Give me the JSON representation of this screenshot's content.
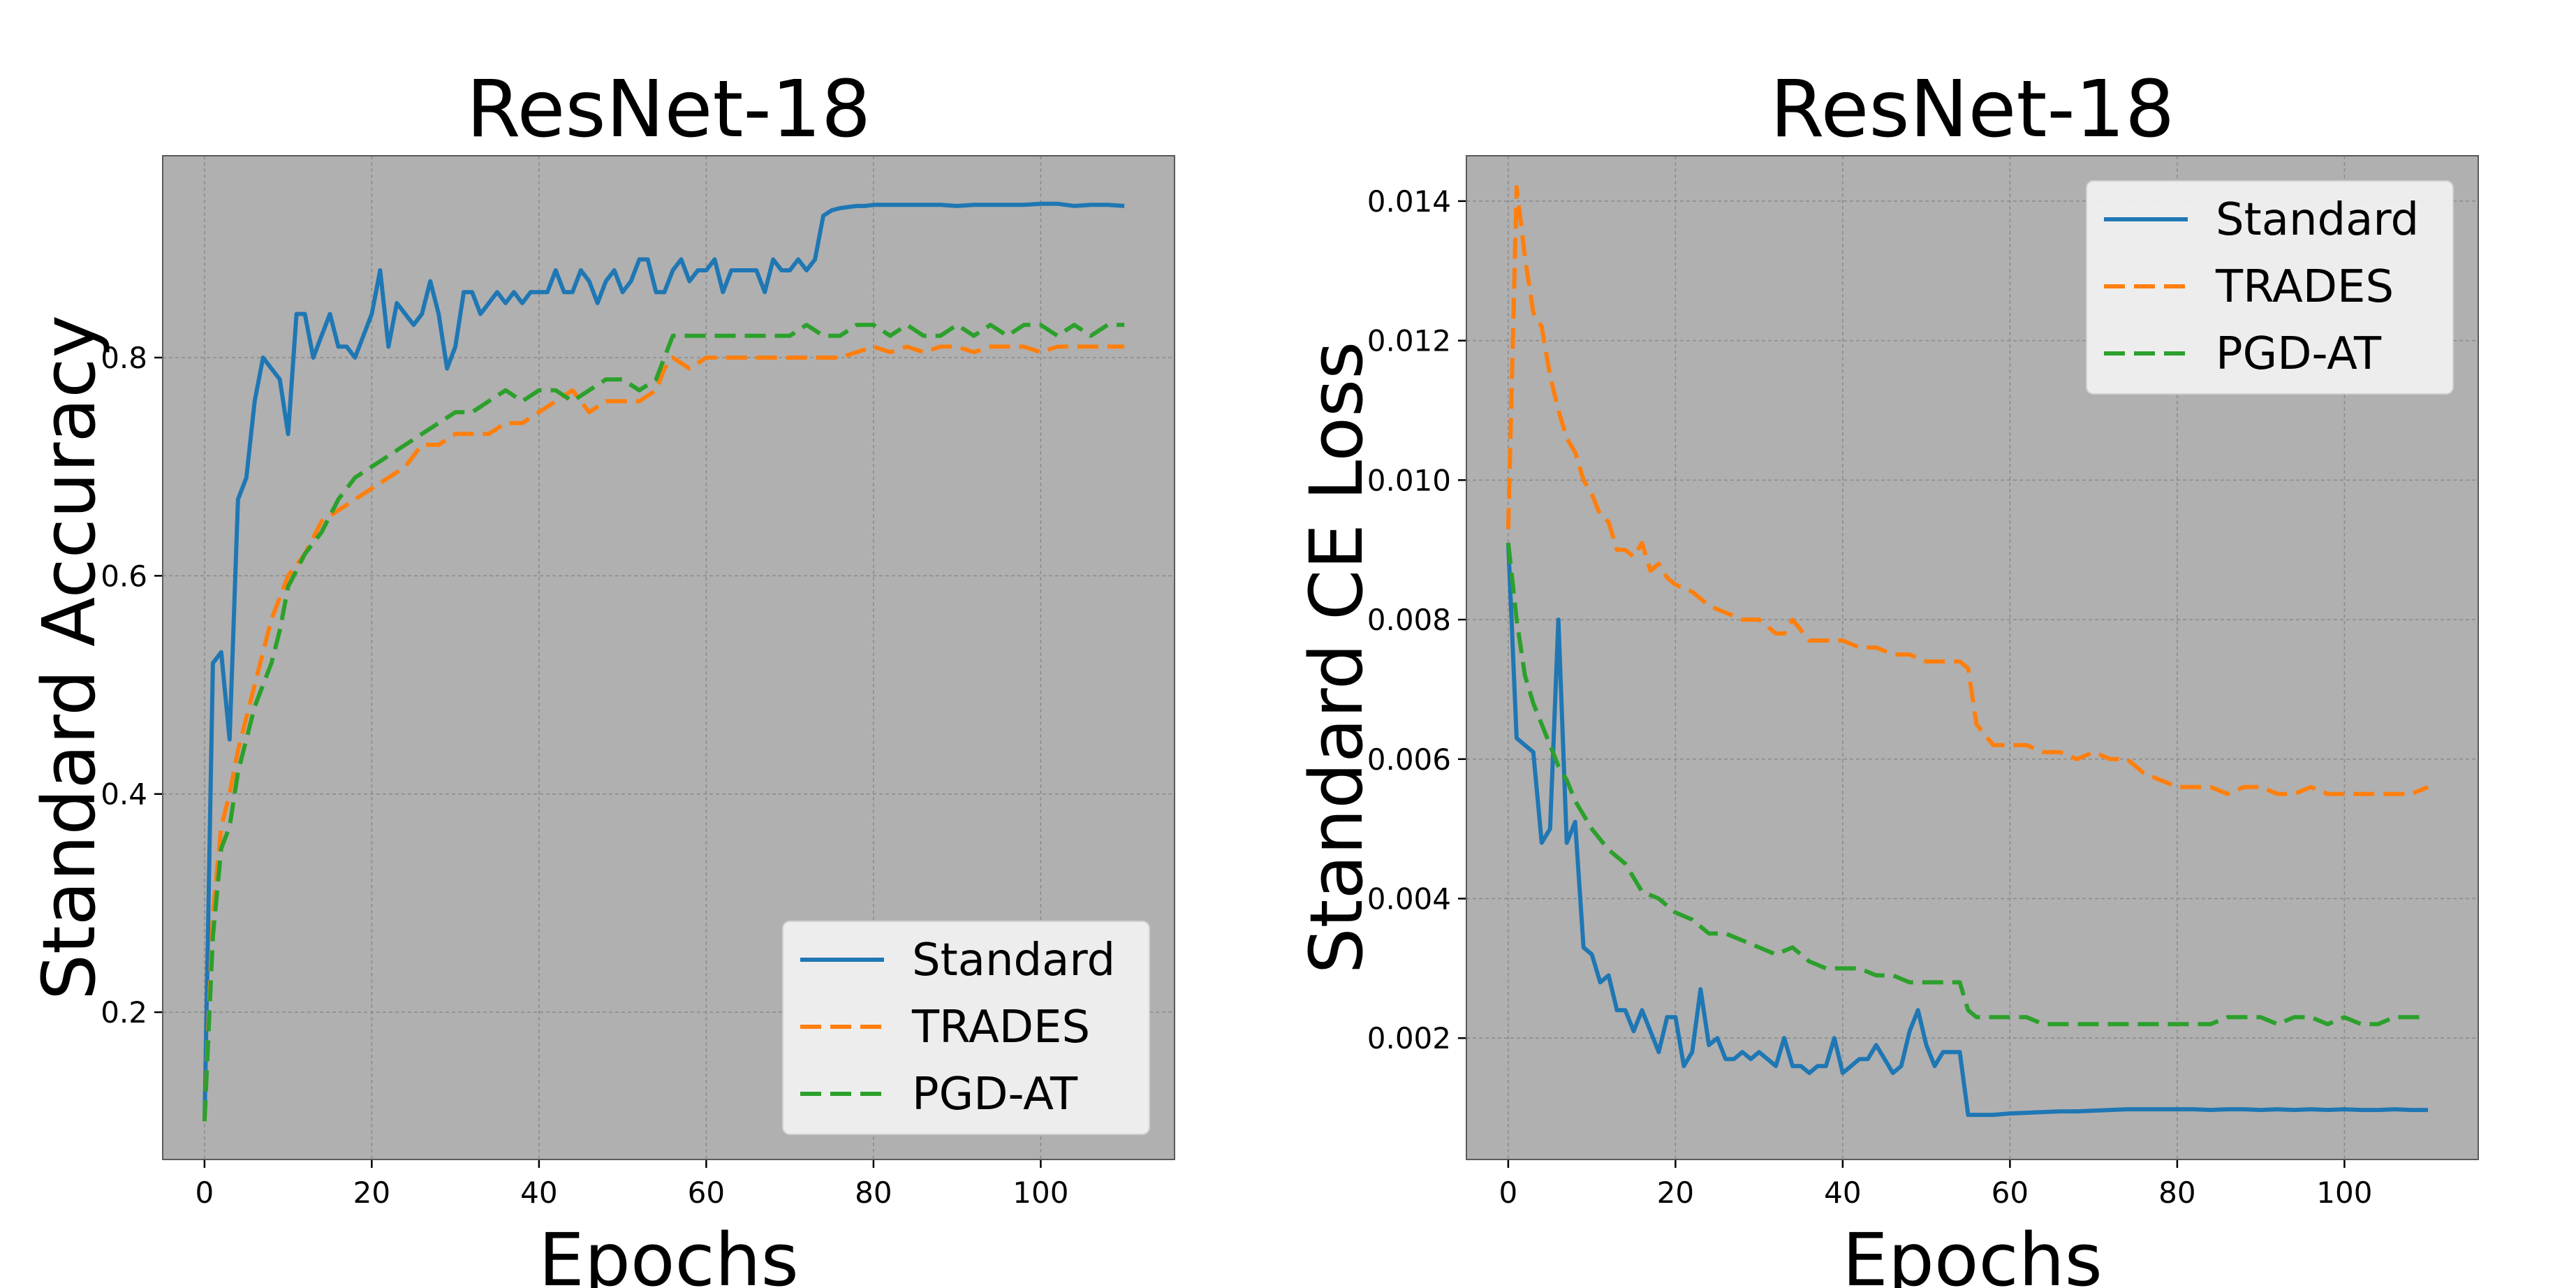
{
  "chart_data": [
    {
      "type": "line",
      "title": "ResNet-18",
      "xlabel": "Epochs",
      "ylabel": "Standard Accuracy",
      "xlim": [
        -5,
        116
      ],
      "ylim": [
        0.065,
        0.985
      ],
      "xticks": [
        0,
        20,
        40,
        60,
        80,
        100
      ],
      "yticks": [
        0.2,
        0.4,
        0.6,
        0.8
      ],
      "ytick_labels": [
        "0.2",
        "0.4",
        "0.6",
        "0.8"
      ],
      "grid": true,
      "legend_position": "lower-right",
      "series": [
        {
          "name": "Standard",
          "color": "#1f77b4",
          "style": "solid",
          "x": [
            0,
            1,
            2,
            3,
            4,
            5,
            6,
            7,
            8,
            9,
            10,
            11,
            12,
            13,
            14,
            15,
            16,
            17,
            18,
            19,
            20,
            21,
            22,
            23,
            24,
            25,
            26,
            27,
            28,
            29,
            30,
            31,
            32,
            33,
            34,
            35,
            36,
            37,
            38,
            39,
            40,
            41,
            42,
            43,
            44,
            45,
            46,
            47,
            48,
            49,
            50,
            51,
            52,
            53,
            54,
            55,
            56,
            57,
            58,
            59,
            60,
            61,
            62,
            63,
            64,
            65,
            66,
            67,
            68,
            69,
            70,
            71,
            72,
            73,
            74,
            75,
            76,
            77,
            78,
            79,
            80,
            82,
            84,
            86,
            88,
            90,
            92,
            94,
            96,
            98,
            100,
            102,
            104,
            106,
            108,
            110
          ],
          "y": [
            0.1,
            0.52,
            0.53,
            0.45,
            0.67,
            0.69,
            0.76,
            0.8,
            0.79,
            0.78,
            0.73,
            0.84,
            0.84,
            0.8,
            0.82,
            0.84,
            0.81,
            0.81,
            0.8,
            0.82,
            0.84,
            0.88,
            0.81,
            0.85,
            0.84,
            0.83,
            0.84,
            0.87,
            0.84,
            0.79,
            0.81,
            0.86,
            0.86,
            0.84,
            0.85,
            0.86,
            0.85,
            0.86,
            0.85,
            0.86,
            0.86,
            0.86,
            0.88,
            0.86,
            0.86,
            0.88,
            0.87,
            0.85,
            0.87,
            0.88,
            0.86,
            0.87,
            0.89,
            0.89,
            0.86,
            0.86,
            0.88,
            0.89,
            0.87,
            0.88,
            0.88,
            0.89,
            0.86,
            0.88,
            0.88,
            0.88,
            0.88,
            0.86,
            0.89,
            0.88,
            0.88,
            0.89,
            0.88,
            0.89,
            0.93,
            0.935,
            0.937,
            0.938,
            0.939,
            0.939,
            0.94,
            0.94,
            0.94,
            0.94,
            0.94,
            0.939,
            0.94,
            0.94,
            0.94,
            0.94,
            0.941,
            0.941,
            0.939,
            0.94,
            0.94,
            0.939
          ]
        },
        {
          "name": "TRADES",
          "color": "#ff7f0e",
          "style": "dashed",
          "x": [
            0,
            1,
            2,
            3,
            4,
            5,
            6,
            7,
            8,
            9,
            10,
            12,
            14,
            16,
            18,
            20,
            22,
            24,
            26,
            28,
            30,
            32,
            34,
            36,
            38,
            40,
            42,
            44,
            46,
            48,
            50,
            52,
            54,
            55,
            56,
            58,
            60,
            62,
            64,
            66,
            68,
            70,
            72,
            74,
            76,
            78,
            80,
            82,
            84,
            86,
            88,
            90,
            92,
            94,
            96,
            98,
            100,
            102,
            104,
            106,
            108,
            110
          ],
          "y": [
            0.1,
            0.29,
            0.37,
            0.4,
            0.44,
            0.47,
            0.5,
            0.53,
            0.56,
            0.58,
            0.6,
            0.62,
            0.65,
            0.66,
            0.67,
            0.68,
            0.69,
            0.7,
            0.72,
            0.72,
            0.73,
            0.73,
            0.73,
            0.74,
            0.74,
            0.75,
            0.76,
            0.77,
            0.75,
            0.76,
            0.76,
            0.76,
            0.77,
            0.79,
            0.8,
            0.79,
            0.8,
            0.8,
            0.8,
            0.8,
            0.8,
            0.8,
            0.8,
            0.8,
            0.8,
            0.805,
            0.81,
            0.805,
            0.81,
            0.805,
            0.81,
            0.81,
            0.805,
            0.81,
            0.81,
            0.81,
            0.805,
            0.81,
            0.81,
            0.81,
            0.81,
            0.81
          ]
        },
        {
          "name": "PGD-AT",
          "color": "#2ca02c",
          "style": "dashed",
          "x": [
            0,
            1,
            2,
            3,
            4,
            5,
            6,
            7,
            8,
            9,
            10,
            12,
            14,
            16,
            18,
            20,
            22,
            24,
            26,
            28,
            30,
            32,
            34,
            36,
            38,
            40,
            42,
            44,
            46,
            48,
            50,
            52,
            54,
            55,
            56,
            58,
            60,
            62,
            64,
            66,
            68,
            70,
            72,
            74,
            76,
            78,
            80,
            82,
            84,
            86,
            88,
            90,
            92,
            94,
            96,
            98,
            100,
            102,
            104,
            106,
            108,
            110
          ],
          "y": [
            0.1,
            0.27,
            0.35,
            0.37,
            0.42,
            0.45,
            0.48,
            0.5,
            0.52,
            0.55,
            0.59,
            0.62,
            0.64,
            0.67,
            0.69,
            0.7,
            0.71,
            0.72,
            0.73,
            0.74,
            0.75,
            0.75,
            0.76,
            0.77,
            0.76,
            0.77,
            0.77,
            0.76,
            0.77,
            0.78,
            0.78,
            0.77,
            0.78,
            0.8,
            0.82,
            0.82,
            0.82,
            0.82,
            0.82,
            0.82,
            0.82,
            0.82,
            0.83,
            0.82,
            0.82,
            0.83,
            0.83,
            0.82,
            0.83,
            0.82,
            0.82,
            0.83,
            0.82,
            0.83,
            0.82,
            0.83,
            0.83,
            0.82,
            0.83,
            0.82,
            0.83,
            0.83
          ]
        }
      ]
    },
    {
      "type": "line",
      "title": "ResNet-18",
      "xlabel": "Epochs",
      "ylabel": "Standard CE Loss",
      "xlim": [
        -5,
        116
      ],
      "ylim": [
        0.00026,
        0.01465
      ],
      "xticks": [
        0,
        20,
        40,
        60,
        80,
        100
      ],
      "yticks": [
        0.002,
        0.004,
        0.006,
        0.008,
        0.01,
        0.012,
        0.014
      ],
      "ytick_labels": [
        "0.002",
        "0.004",
        "0.006",
        "0.008",
        "0.010",
        "0.012",
        "0.014"
      ],
      "grid": true,
      "legend_position": "upper-right",
      "series": [
        {
          "name": "Standard",
          "color": "#1f77b4",
          "style": "solid",
          "x": [
            0,
            1,
            2,
            3,
            4,
            5,
            6,
            7,
            8,
            9,
            10,
            11,
            12,
            13,
            14,
            15,
            16,
            17,
            18,
            19,
            20,
            21,
            22,
            23,
            24,
            25,
            26,
            27,
            28,
            29,
            30,
            31,
            32,
            33,
            34,
            35,
            36,
            37,
            38,
            39,
            40,
            41,
            42,
            43,
            44,
            45,
            46,
            47,
            48,
            49,
            50,
            51,
            52,
            53,
            54,
            55,
            56,
            58,
            60,
            62,
            64,
            66,
            68,
            70,
            72,
            74,
            76,
            78,
            80,
            82,
            84,
            86,
            88,
            90,
            92,
            94,
            96,
            98,
            100,
            102,
            104,
            106,
            108,
            110
          ],
          "y": [
            0.0091,
            0.0063,
            0.0062,
            0.0061,
            0.0048,
            0.005,
            0.008,
            0.0048,
            0.0051,
            0.0033,
            0.0032,
            0.0028,
            0.0029,
            0.0024,
            0.0024,
            0.0021,
            0.0024,
            0.0021,
            0.0018,
            0.0023,
            0.0023,
            0.0016,
            0.0018,
            0.0027,
            0.0019,
            0.002,
            0.0017,
            0.0017,
            0.0018,
            0.0017,
            0.0018,
            0.0017,
            0.0016,
            0.002,
            0.0016,
            0.0016,
            0.0015,
            0.0016,
            0.0016,
            0.002,
            0.0015,
            0.0016,
            0.0017,
            0.0017,
            0.0019,
            0.0017,
            0.0015,
            0.0016,
            0.0021,
            0.0024,
            0.0019,
            0.0016,
            0.0018,
            0.0018,
            0.0018,
            0.0009,
            0.0009,
            0.0009,
            0.00092,
            0.00093,
            0.00094,
            0.00095,
            0.00095,
            0.00096,
            0.00097,
            0.00098,
            0.00098,
            0.00098,
            0.00098,
            0.00098,
            0.00097,
            0.00098,
            0.00098,
            0.00097,
            0.00098,
            0.00097,
            0.00098,
            0.00097,
            0.00098,
            0.00097,
            0.00097,
            0.00098,
            0.00097,
            0.00097
          ]
        },
        {
          "name": "TRADES",
          "color": "#ff7f0e",
          "style": "dashed",
          "x": [
            0,
            1,
            2,
            3,
            4,
            5,
            6,
            7,
            8,
            9,
            10,
            11,
            12,
            13,
            14,
            15,
            16,
            17,
            18,
            19,
            20,
            22,
            24,
            26,
            28,
            30,
            32,
            33,
            34,
            36,
            38,
            40,
            42,
            44,
            46,
            48,
            50,
            52,
            54,
            55,
            56,
            58,
            60,
            62,
            64,
            66,
            68,
            70,
            72,
            74,
            76,
            78,
            80,
            82,
            84,
            86,
            88,
            90,
            92,
            94,
            96,
            98,
            100,
            102,
            104,
            106,
            108,
            110
          ],
          "y": [
            0.0093,
            0.0142,
            0.0132,
            0.0124,
            0.0122,
            0.0115,
            0.011,
            0.0106,
            0.0104,
            0.01,
            0.0098,
            0.0095,
            0.0094,
            0.009,
            0.009,
            0.0089,
            0.0091,
            0.0087,
            0.0088,
            0.0086,
            0.0085,
            0.0084,
            0.0082,
            0.0081,
            0.008,
            0.008,
            0.0078,
            0.0078,
            0.008,
            0.0077,
            0.0077,
            0.0077,
            0.0076,
            0.0076,
            0.0075,
            0.0075,
            0.0074,
            0.0074,
            0.0074,
            0.0073,
            0.0065,
            0.0062,
            0.0062,
            0.0062,
            0.0061,
            0.0061,
            0.006,
            0.0061,
            0.006,
            0.006,
            0.0058,
            0.0057,
            0.0056,
            0.0056,
            0.0056,
            0.0055,
            0.0056,
            0.0056,
            0.0055,
            0.0055,
            0.0056,
            0.0055,
            0.0055,
            0.0055,
            0.0055,
            0.0055,
            0.0055,
            0.0056
          ]
        },
        {
          "name": "PGD-AT",
          "color": "#2ca02c",
          "style": "dashed",
          "x": [
            0,
            1,
            2,
            3,
            4,
            5,
            6,
            7,
            8,
            9,
            10,
            12,
            14,
            16,
            18,
            20,
            22,
            24,
            26,
            28,
            30,
            32,
            34,
            36,
            38,
            40,
            42,
            44,
            46,
            48,
            50,
            52,
            54,
            55,
            56,
            58,
            60,
            62,
            64,
            66,
            68,
            70,
            72,
            74,
            76,
            78,
            80,
            82,
            84,
            86,
            88,
            90,
            92,
            94,
            96,
            98,
            100,
            102,
            104,
            106,
            108,
            110
          ],
          "y": [
            0.0091,
            0.008,
            0.0072,
            0.0068,
            0.0065,
            0.0062,
            0.0059,
            0.0057,
            0.0054,
            0.0052,
            0.005,
            0.0047,
            0.0045,
            0.0041,
            0.004,
            0.0038,
            0.0037,
            0.0035,
            0.0035,
            0.0034,
            0.0033,
            0.0032,
            0.0033,
            0.0031,
            0.003,
            0.003,
            0.003,
            0.0029,
            0.0029,
            0.0028,
            0.0028,
            0.0028,
            0.0028,
            0.0024,
            0.0023,
            0.0023,
            0.0023,
            0.0023,
            0.0022,
            0.0022,
            0.0022,
            0.0022,
            0.0022,
            0.0022,
            0.0022,
            0.0022,
            0.0022,
            0.0022,
            0.0022,
            0.0023,
            0.0023,
            0.0023,
            0.0022,
            0.0023,
            0.0023,
            0.0022,
            0.0023,
            0.0022,
            0.0022,
            0.0023,
            0.0023,
            0.0023
          ]
        }
      ]
    }
  ]
}
